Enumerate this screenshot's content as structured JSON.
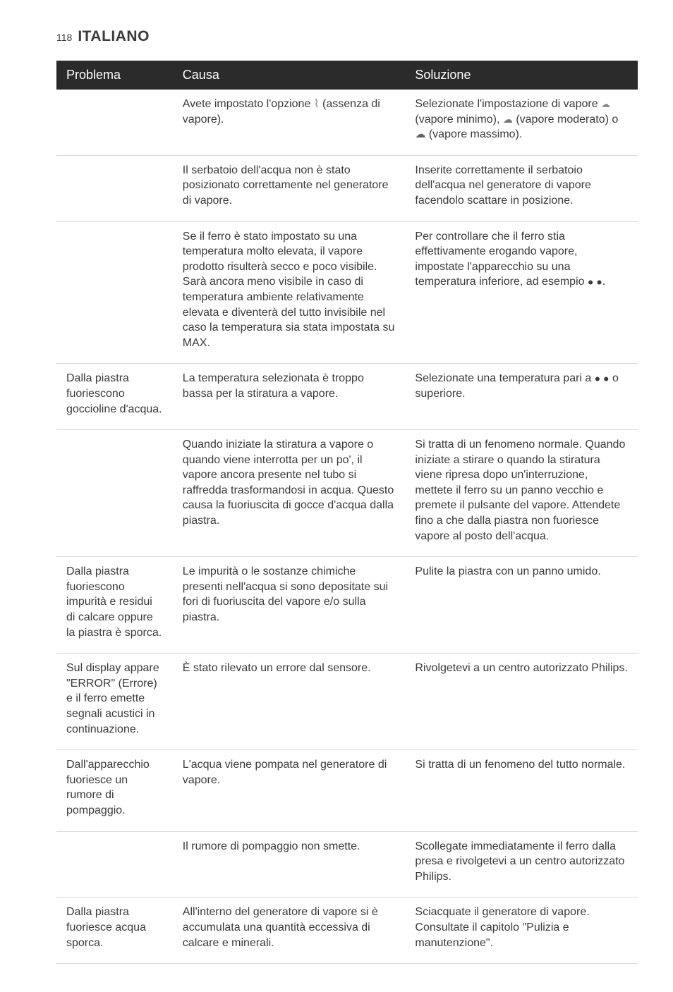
{
  "page_number": "118",
  "page_title": "ITALIANO",
  "columns": {
    "problem": "Problema",
    "cause": "Causa",
    "solution": "Soluzione"
  },
  "rows": [
    {
      "problem": "",
      "cause_pre": "Avete impostato l'opzione ",
      "cause_post": " (assenza di vapore).",
      "solution_pre": "Selezionate l'impostazione di vapore ",
      "solution_mid1": " (vapore minimo), ",
      "solution_mid2": " (vapore moderato) o ",
      "solution_post": " (vapore massimo).",
      "has_icons": true
    },
    {
      "problem": "",
      "cause": "Il serbatoio dell'acqua non è stato posizionato correttamente nel generatore di vapore.",
      "solution": "Inserite correttamente il serbatoio dell'acqua nel generatore di vapore facendolo scattare in posizione."
    },
    {
      "problem": "",
      "cause": "Se il ferro è stato impostato su una temperatura molto elevata, il vapore prodotto risulterà secco e poco visibile. Sarà ancora meno visibile in caso di temperatura ambiente relativamente elevata e diventerà del tutto invisibile nel caso la temperatura sia stata impostata su MAX.",
      "solution_pre": "Per controllare che il ferro stia effettivamente erogando vapore, impostate l'apparecchio su una temperatura inferiore, ad esempio ",
      "solution_post": ".",
      "has_dots_solution": true
    },
    {
      "problem": "Dalla piastra fuoriescono goccioline d'acqua.",
      "cause": "La temperatura selezionata è troppo bassa per la stiratura a vapore.",
      "solution_pre": "Selezionate una temperatura pari a ",
      "solution_post": " o superiore.",
      "has_dots_solution": true
    },
    {
      "problem": "",
      "cause": "Quando iniziate la stiratura a vapore o quando viene interrotta per un po', il vapore ancora presente nel tubo si raffredda trasformandosi in acqua. Questo causa la fuoriuscita di gocce d'acqua dalla piastra.",
      "solution": "Si tratta di un fenomeno normale. Quando iniziate a stirare o quando la stiratura viene ripresa dopo un'interruzione, mettete il ferro su un panno vecchio e premete il pulsante del vapore. Attendete fino a che dalla piastra non fuoriesce vapore al posto dell'acqua."
    },
    {
      "problem": "Dalla piastra fuoriescono impurità e residui di calcare oppure la piastra è sporca.",
      "cause": "Le impurità o le sostanze chimiche presenti nell'acqua si sono depositate sui fori di fuoriuscita del vapore e/o sulla piastra.",
      "solution": "Pulite la piastra con un panno umido."
    },
    {
      "problem": "Sul display appare \"ERROR\" (Errore) e il ferro emette segnali acustici in continuazione.",
      "cause": "È stato rilevato un errore dal sensore.",
      "solution": "Rivolgetevi a un centro autorizzato Philips."
    },
    {
      "problem": "Dall'apparecchio fuoriesce un rumore di pompaggio.",
      "cause": "L'acqua viene pompata nel generatore di vapore.",
      "solution": "Si tratta di un fenomeno del tutto normale."
    },
    {
      "problem": "",
      "cause": "Il rumore di pompaggio non smette.",
      "solution": "Scollegate immediatamente il ferro dalla presa e rivolgetevi a un centro autorizzato Philips."
    },
    {
      "problem": "Dalla piastra fuoriesce acqua sporca.",
      "cause": "All'interno del generatore di vapore si è accumulata una quantità eccessiva di calcare e minerali.",
      "solution": "Sciacquate il generatore di vapore. Consultate il capitolo \"Pulizia e manutenzione\"."
    }
  ]
}
